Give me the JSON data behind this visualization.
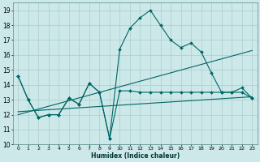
{
  "xlabel": "Humidex (Indice chaleur)",
  "ylabel": "",
  "bg_color": "#cce8e8",
  "grid_color": "#aacece",
  "line_color": "#006666",
  "xlim": [
    -0.5,
    23.5
  ],
  "ylim": [
    10,
    19.5
  ],
  "xticks": [
    0,
    1,
    2,
    3,
    4,
    5,
    6,
    7,
    8,
    9,
    10,
    11,
    12,
    13,
    14,
    15,
    16,
    17,
    18,
    19,
    20,
    21,
    22,
    23
  ],
  "yticks": [
    10,
    11,
    12,
    13,
    14,
    15,
    16,
    17,
    18,
    19
  ],
  "series": [
    {
      "x": [
        0,
        1,
        2,
        3,
        4,
        5,
        6,
        7,
        8,
        9,
        10,
        11,
        12,
        13,
        14,
        15,
        16,
        17,
        18,
        19,
        20,
        21,
        22,
        23
      ],
      "y": [
        14.6,
        13.0,
        11.8,
        12.0,
        12.0,
        13.1,
        12.7,
        14.1,
        13.5,
        10.4,
        16.4,
        17.8,
        18.5,
        19.0,
        18.0,
        17.0,
        16.5,
        16.8,
        16.2,
        14.8,
        13.5,
        13.5,
        13.8,
        13.1
      ],
      "marker": true
    },
    {
      "x": [
        0,
        1,
        2,
        3,
        4,
        5,
        6,
        7,
        8,
        9,
        10,
        11,
        12,
        13,
        14,
        15,
        16,
        17,
        18,
        19,
        20,
        21,
        22,
        23
      ],
      "y": [
        14.6,
        13.0,
        11.8,
        12.0,
        12.0,
        13.1,
        12.7,
        14.1,
        13.5,
        10.4,
        13.6,
        13.6,
        13.5,
        13.5,
        13.5,
        13.5,
        13.5,
        13.5,
        13.5,
        13.5,
        13.5,
        13.5,
        13.5,
        13.1
      ],
      "marker": true
    },
    {
      "x": [
        0,
        23
      ],
      "y": [
        12.0,
        16.3
      ],
      "marker": false
    },
    {
      "x": [
        0,
        23
      ],
      "y": [
        12.2,
        13.2
      ],
      "marker": false
    }
  ]
}
